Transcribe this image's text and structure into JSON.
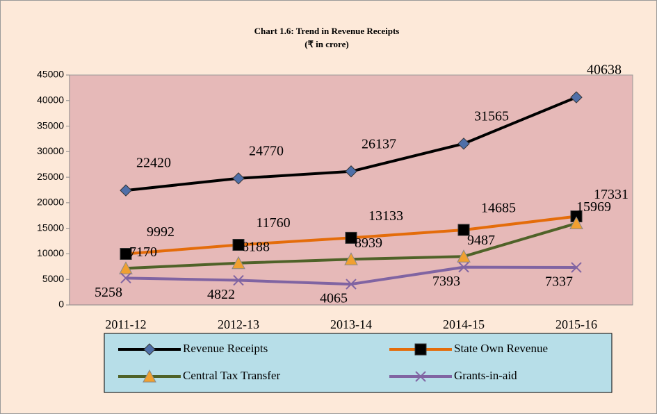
{
  "chart_data": {
    "type": "line",
    "title": "Chart 1.6: Trend in Revenue Receipts",
    "subtitle": "(₹ in crore)",
    "categories": [
      "2011-12",
      "2012-13",
      "2013-14",
      "2014-15",
      "2015-16"
    ],
    "series": [
      {
        "name": "Revenue Receipts",
        "color": "#000000",
        "marker": "diamond",
        "marker_color": "#4f6fa8",
        "values": [
          22420,
          24770,
          26137,
          31565,
          40638
        ]
      },
      {
        "name": "State Own Revenue",
        "color": "#e46c0a",
        "marker": "square",
        "marker_color": "#000000",
        "values": [
          9992,
          11760,
          13133,
          14685,
          17331
        ]
      },
      {
        "name": "Central Tax Transfer",
        "color": "#4f6228",
        "marker": "triangle",
        "marker_color": "#f0a030",
        "values": [
          7170,
          8188,
          8939,
          9487,
          15969
        ]
      },
      {
        "name": "Grants-in-aid",
        "color": "#8064a2",
        "marker": "x",
        "marker_color": "#8064a2",
        "values": [
          5258,
          4822,
          4065,
          7393,
          7337
        ]
      }
    ],
    "ylim": [
      0,
      45000
    ],
    "yticks": [
      0,
      5000,
      10000,
      15000,
      20000,
      25000,
      30000,
      35000,
      40000,
      45000
    ],
    "grid": false
  }
}
